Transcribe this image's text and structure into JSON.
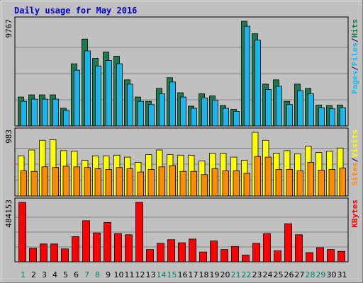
{
  "title": "Daily usage for May 2016",
  "colors": {
    "background": "#c0c0c0",
    "panel": "#c0c0c0",
    "title": "#0000cc",
    "hits": "#1b7a4e",
    "files": "#19b7ef",
    "pages": "#19b7ef",
    "visits": "#ffff00",
    "sites": "#ff8c00",
    "kbytes": "#ff0000",
    "weekday": "#1b7a4e",
    "weekend": "#007f5f",
    "separator": "#000080"
  },
  "chart_data": [
    {
      "type": "bar",
      "panel": "hits-files-pages",
      "categories": [
        "1",
        "2",
        "3",
        "4",
        "5",
        "6",
        "7",
        "8",
        "9",
        "10",
        "11",
        "12",
        "13",
        "14",
        "15",
        "16",
        "17",
        "18",
        "19",
        "20",
        "21",
        "22",
        "23",
        "24",
        "25",
        "26",
        "27",
        "28",
        "29",
        "30",
        "31"
      ],
      "ymax_label": "9767",
      "ylim": [
        0,
        9767
      ],
      "series": [
        {
          "name": "Hits",
          "values": [
            2700,
            2900,
            2900,
            2900,
            1650,
            5800,
            8100,
            6300,
            6900,
            6500,
            4300,
            2700,
            2300,
            3500,
            4500,
            3100,
            1850,
            3000,
            2800,
            1900,
            1550,
            9767,
            8600,
            3900,
            4300,
            2300,
            3900,
            3500,
            1950,
            1900,
            1950
          ]
        },
        {
          "name": "Files",
          "values": [
            2300,
            2500,
            2500,
            2500,
            1450,
            5200,
            7000,
            5600,
            6100,
            5800,
            3900,
            2300,
            2000,
            3000,
            4100,
            2700,
            1650,
            2600,
            2400,
            1650,
            1350,
            9300,
            8000,
            3400,
            3700,
            2000,
            3300,
            3000,
            1700,
            1600,
            1700
          ]
        },
        {
          "name": "Pages",
          "values": [
            2300,
            2500,
            2500,
            2500,
            1450,
            5200,
            7000,
            5600,
            6100,
            5800,
            3900,
            2300,
            2000,
            3000,
            4100,
            2700,
            1650,
            2600,
            2400,
            1650,
            1350,
            9300,
            8000,
            3400,
            3700,
            2000,
            3300,
            3000,
            1700,
            1600,
            1700
          ]
        }
      ],
      "right_labels": [
        "Pages",
        "Files",
        "Hits"
      ]
    },
    {
      "type": "bar",
      "panel": "visits-sites",
      "categories": [
        "1",
        "2",
        "3",
        "4",
        "5",
        "6",
        "7",
        "8",
        "9",
        "10",
        "11",
        "12",
        "13",
        "14",
        "15",
        "16",
        "17",
        "18",
        "19",
        "20",
        "21",
        "22",
        "23",
        "24",
        "25",
        "26",
        "27",
        "28",
        "29",
        "30",
        "31"
      ],
      "ymax_label": "983",
      "ylim": [
        0,
        983
      ],
      "series": [
        {
          "name": "Visits",
          "values": [
            620,
            710,
            860,
            870,
            700,
            690,
            550,
            620,
            620,
            630,
            600,
            520,
            640,
            710,
            640,
            630,
            630,
            540,
            660,
            660,
            600,
            550,
            983,
            860,
            660,
            700,
            650,
            770,
            670,
            690,
            740
          ]
        },
        {
          "name": "Sites",
          "values": [
            390,
            380,
            450,
            440,
            460,
            450,
            440,
            420,
            410,
            440,
            420,
            370,
            410,
            450,
            470,
            380,
            380,
            330,
            420,
            390,
            390,
            350,
            610,
            600,
            410,
            410,
            390,
            520,
            400,
            410,
            430
          ]
        }
      ],
      "right_labels": [
        "Sites",
        "Visits"
      ]
    },
    {
      "type": "bar",
      "panel": "kbytes",
      "categories": [
        "1",
        "2",
        "3",
        "4",
        "5",
        "6",
        "7",
        "8",
        "9",
        "10",
        "11",
        "12",
        "13",
        "14",
        "15",
        "16",
        "17",
        "18",
        "19",
        "20",
        "21",
        "22",
        "23",
        "24",
        "25",
        "26",
        "27",
        "28",
        "29",
        "30",
        "31"
      ],
      "ymax_label": "484153",
      "ylim": [
        0,
        484153
      ],
      "series": [
        {
          "name": "KBytes",
          "values": [
            484153,
            110000,
            145000,
            145000,
            105000,
            205000,
            335000,
            235000,
            320000,
            230000,
            220000,
            484153,
            100000,
            150000,
            180000,
            155000,
            185000,
            80000,
            170000,
            100000,
            125000,
            55000,
            150000,
            230000,
            90000,
            310000,
            220000,
            75000,
            115000,
            100000,
            85000
          ]
        }
      ],
      "right_labels": [
        "KBytes"
      ]
    }
  ],
  "weekend_days": [
    "1",
    "7",
    "8",
    "14",
    "15",
    "21",
    "22",
    "28",
    "29"
  ]
}
